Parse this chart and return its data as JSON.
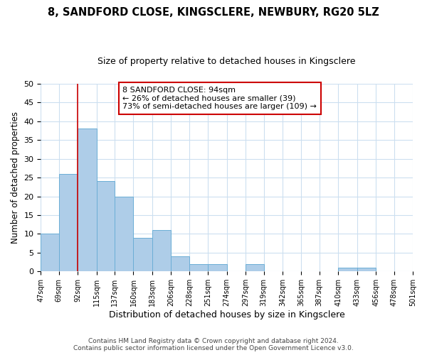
{
  "title1": "8, SANDFORD CLOSE, KINGSCLERE, NEWBURY, RG20 5LZ",
  "title2": "Size of property relative to detached houses in Kingsclere",
  "xlabel": "Distribution of detached houses by size in Kingsclere",
  "ylabel": "Number of detached properties",
  "bar_values": [
    10,
    26,
    38,
    24,
    20,
    9,
    11,
    4,
    2,
    2,
    0,
    2,
    0,
    0,
    0,
    0,
    1,
    1,
    0,
    0
  ],
  "bin_edges": [
    47,
    69,
    92,
    115,
    137,
    160,
    183,
    206,
    228,
    251,
    274,
    297,
    319,
    342,
    365,
    387,
    410,
    433,
    456,
    478,
    501
  ],
  "x_tick_labels": [
    "47sqm",
    "69sqm",
    "92sqm",
    "115sqm",
    "137sqm",
    "160sqm",
    "183sqm",
    "206sqm",
    "228sqm",
    "251sqm",
    "274sqm",
    "297sqm",
    "319sqm",
    "342sqm",
    "365sqm",
    "387sqm",
    "410sqm",
    "433sqm",
    "456sqm",
    "478sqm",
    "501sqm"
  ],
  "bar_color": "#aecde8",
  "bar_edge_color": "#6baed6",
  "vline_x": 92,
  "vline_color": "#cc0000",
  "ylim": [
    0,
    50
  ],
  "yticks": [
    0,
    5,
    10,
    15,
    20,
    25,
    30,
    35,
    40,
    45,
    50
  ],
  "annotation_text": "8 SANDFORD CLOSE: 94sqm\n← 26% of detached houses are smaller (39)\n73% of semi-detached houses are larger (109) →",
  "annotation_box_color": "#ffffff",
  "annotation_box_edgecolor": "#cc0000",
  "footer1": "Contains HM Land Registry data © Crown copyright and database right 2024.",
  "footer2": "Contains public sector information licensed under the Open Government Licence v3.0.",
  "title1_fontsize": 10.5,
  "title2_fontsize": 9,
  "grid_color": "#ccdff0",
  "background_color": "#ffffff"
}
